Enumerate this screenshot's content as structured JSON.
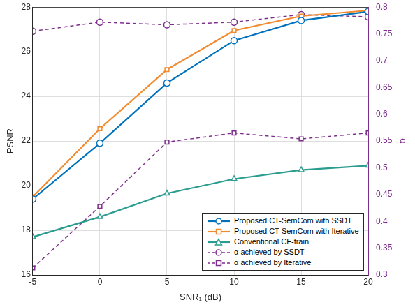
{
  "chart_data": {
    "type": "line",
    "x_label": "SNR₁ (dB)",
    "y_label": "PSNR",
    "y2_label": "α",
    "x": [
      -5,
      0,
      5,
      10,
      15,
      20
    ],
    "xlim": [
      -5,
      20
    ],
    "xticks": [
      -5,
      0,
      5,
      10,
      15,
      20
    ],
    "ylim": [
      16,
      28
    ],
    "yticks": [
      16,
      18,
      20,
      22,
      24,
      26,
      28
    ],
    "y2lim": [
      0.3,
      0.8
    ],
    "y2ticks": [
      0.3,
      0.35,
      0.4,
      0.45,
      0.5,
      0.55,
      0.6,
      0.65,
      0.7,
      0.75,
      0.8
    ],
    "grid": true,
    "legend": "lower right",
    "series": [
      {
        "name": "Proposed CT-SemCom with SSDT",
        "color": "#0072bd",
        "marker": "circle",
        "line_style": "solid",
        "values": [
          19.4,
          21.9,
          24.6,
          26.5,
          27.4,
          27.8
        ]
      },
      {
        "name": "Proposed CT-SemCom with Iterative",
        "color": "#f28a2e",
        "marker": "square",
        "line_style": "solid",
        "values": [
          19.5,
          22.55,
          25.2,
          26.95,
          27.6,
          27.85
        ]
      },
      {
        "name": "Conventional CF-train",
        "color": "#2a9d8f",
        "marker": "triangle",
        "line_style": "solid",
        "values": [
          17.7,
          18.6,
          19.65,
          20.3,
          20.7,
          20.9
        ]
      },
      {
        "name": "α achieved by SSDT",
        "color": "#7e2f8e",
        "marker": "circle",
        "line_style": "dashed",
        "axis": "y2",
        "values": [
          0.755,
          0.772,
          0.767,
          0.772,
          0.786,
          0.782
        ]
      },
      {
        "name": "α achieved by Iterative",
        "color": "#7e2f8e",
        "marker": "square",
        "line_style": "dashed",
        "axis": "y2",
        "values": [
          0.313,
          0.428,
          0.548,
          0.565,
          0.554,
          0.565
        ]
      }
    ]
  }
}
